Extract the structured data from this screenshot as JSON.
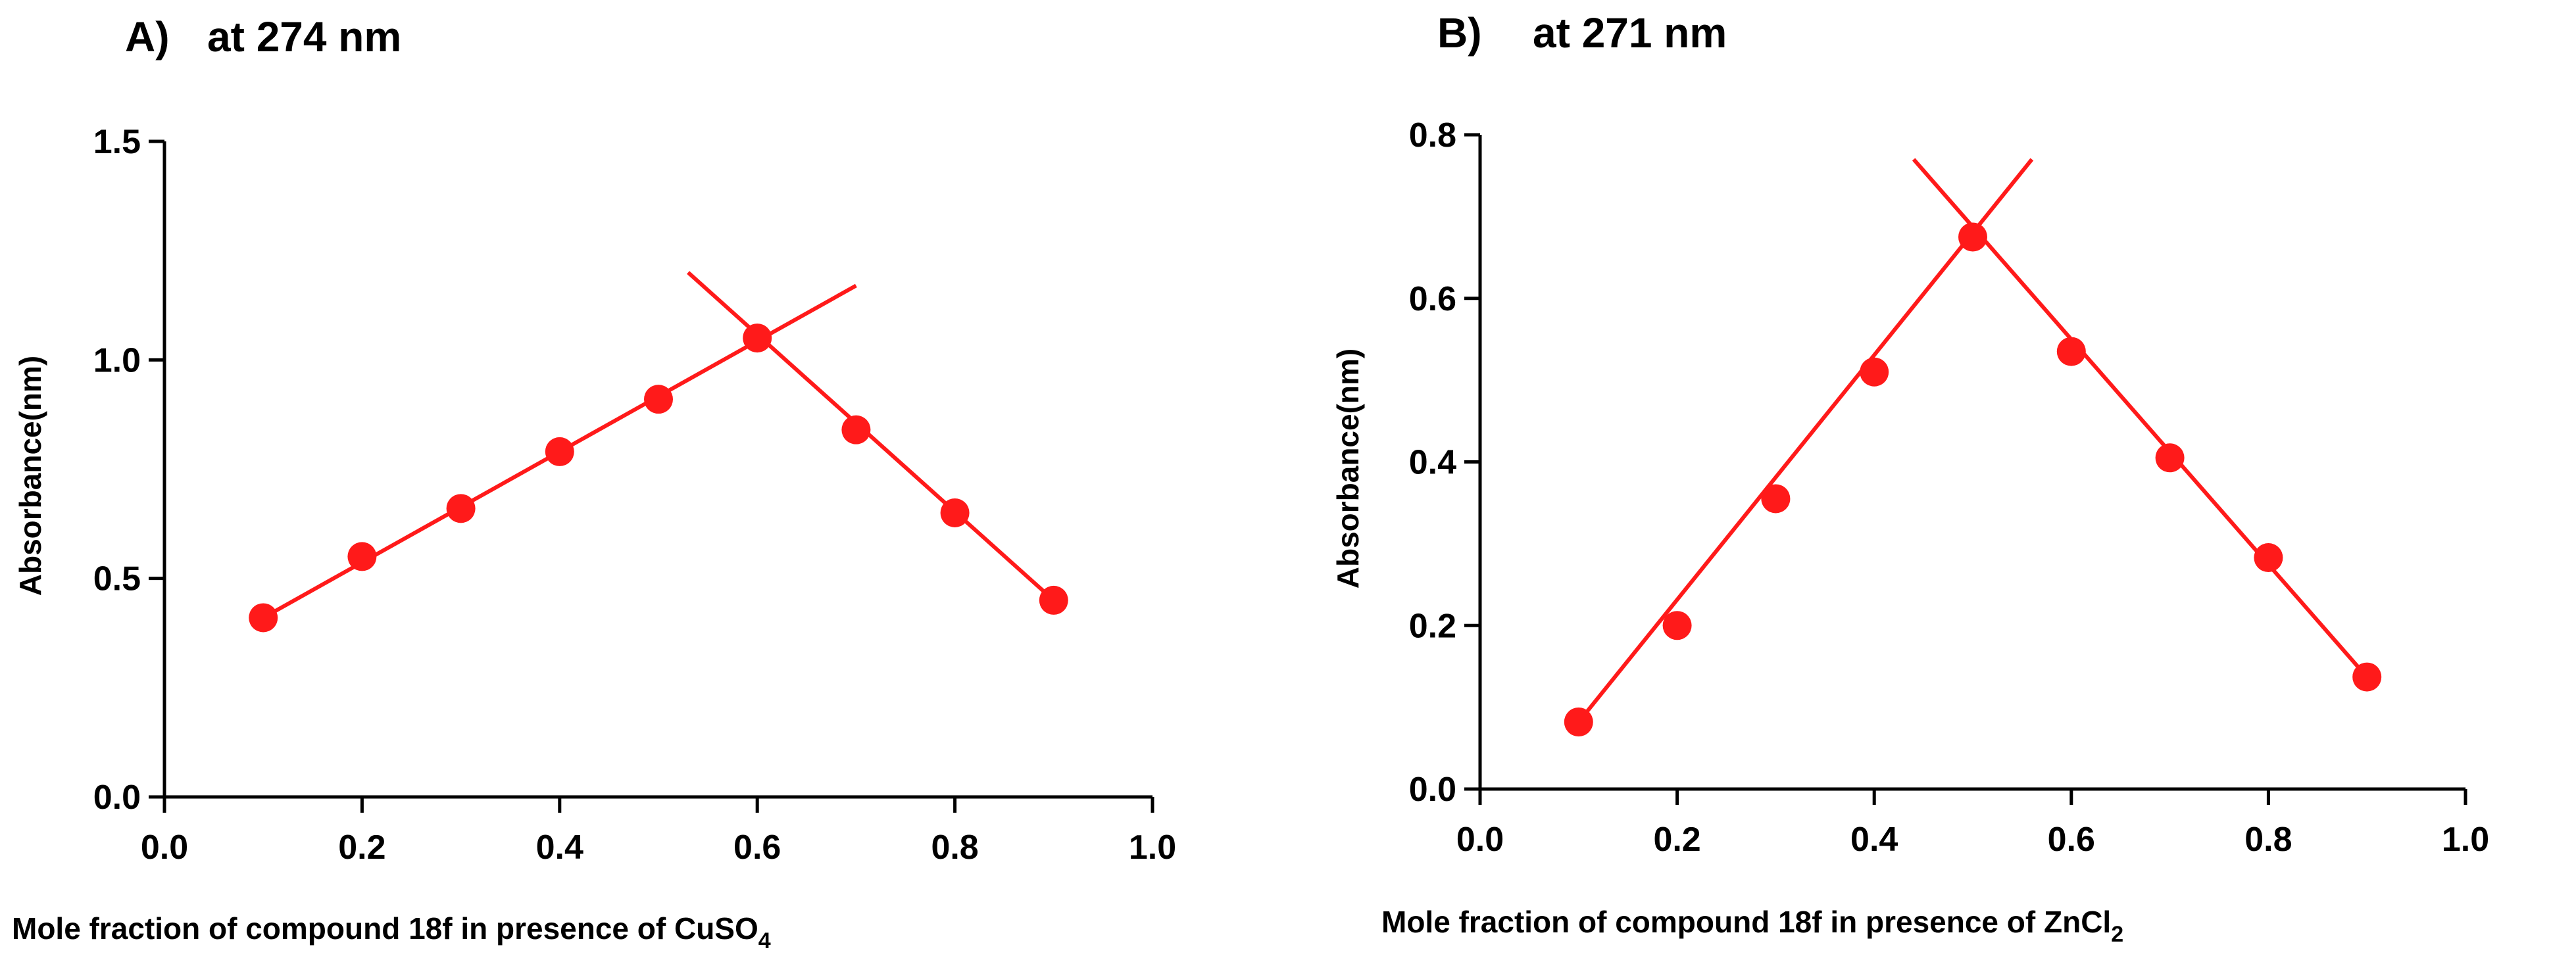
{
  "chart_data": [
    {
      "type": "line",
      "panel_label": "A)",
      "title": "at 274 nm",
      "xlabel_main": "Mole fraction of compound 18f in presence of CuSO",
      "xlabel_subscript": "4",
      "ylabel": "Absorbance(nm)",
      "xlim": [
        0.0,
        1.0
      ],
      "ylim": [
        0.0,
        1.5
      ],
      "xticks": [
        0.0,
        0.2,
        0.4,
        0.6,
        0.8,
        1.0
      ],
      "xtick_labels": [
        "0.0",
        "0.2",
        "0.4",
        "0.6",
        "0.8",
        "1.0"
      ],
      "yticks": [
        0.0,
        0.5,
        1.0,
        1.5
      ],
      "ytick_labels": [
        "0.0",
        "0.5",
        "1.0",
        "1.5"
      ],
      "color": "#ff1a1a",
      "series": [
        {
          "name": "measured",
          "x": [
            0.1,
            0.2,
            0.3,
            0.4,
            0.5,
            0.6,
            0.7,
            0.8,
            0.9
          ],
          "y": [
            0.41,
            0.55,
            0.66,
            0.79,
            0.91,
            1.05,
            0.84,
            0.65,
            0.45
          ]
        }
      ],
      "fit_lines": [
        {
          "name": "ascending-fit",
          "x": [
            0.1,
            0.7
          ],
          "y": [
            0.41,
            1.17
          ]
        },
        {
          "name": "descending-fit",
          "x": [
            0.53,
            0.9
          ],
          "y": [
            1.2,
            0.45
          ]
        }
      ]
    },
    {
      "type": "line",
      "panel_label": "B)",
      "title": "at 271 nm",
      "xlabel_main": "Mole fraction of compound 18f in presence of ZnCl",
      "xlabel_subscript": "2",
      "ylabel": "Absorbance(nm)",
      "xlim": [
        0.0,
        1.0
      ],
      "ylim": [
        0.0,
        0.8
      ],
      "xticks": [
        0.0,
        0.2,
        0.4,
        0.6,
        0.8,
        1.0
      ],
      "xtick_labels": [
        "0.0",
        "0.2",
        "0.4",
        "0.6",
        "0.8",
        "1.0"
      ],
      "yticks": [
        0.0,
        0.2,
        0.4,
        0.6,
        0.8
      ],
      "ytick_labels": [
        "0.0",
        "0.2",
        "0.4",
        "0.6",
        "0.8"
      ],
      "color": "#ff1a1a",
      "series": [
        {
          "name": "measured",
          "x": [
            0.1,
            0.2,
            0.3,
            0.4,
            0.5,
            0.6,
            0.7,
            0.8,
            0.9
          ],
          "y": [
            0.082,
            0.2,
            0.355,
            0.51,
            0.675,
            0.535,
            0.405,
            0.283,
            0.137
          ]
        }
      ],
      "fit_lines": [
        {
          "name": "ascending-fit",
          "x": [
            0.1,
            0.56
          ],
          "y": [
            0.082,
            0.77
          ]
        },
        {
          "name": "descending-fit",
          "x": [
            0.44,
            0.9
          ],
          "y": [
            0.77,
            0.137
          ]
        }
      ]
    }
  ]
}
